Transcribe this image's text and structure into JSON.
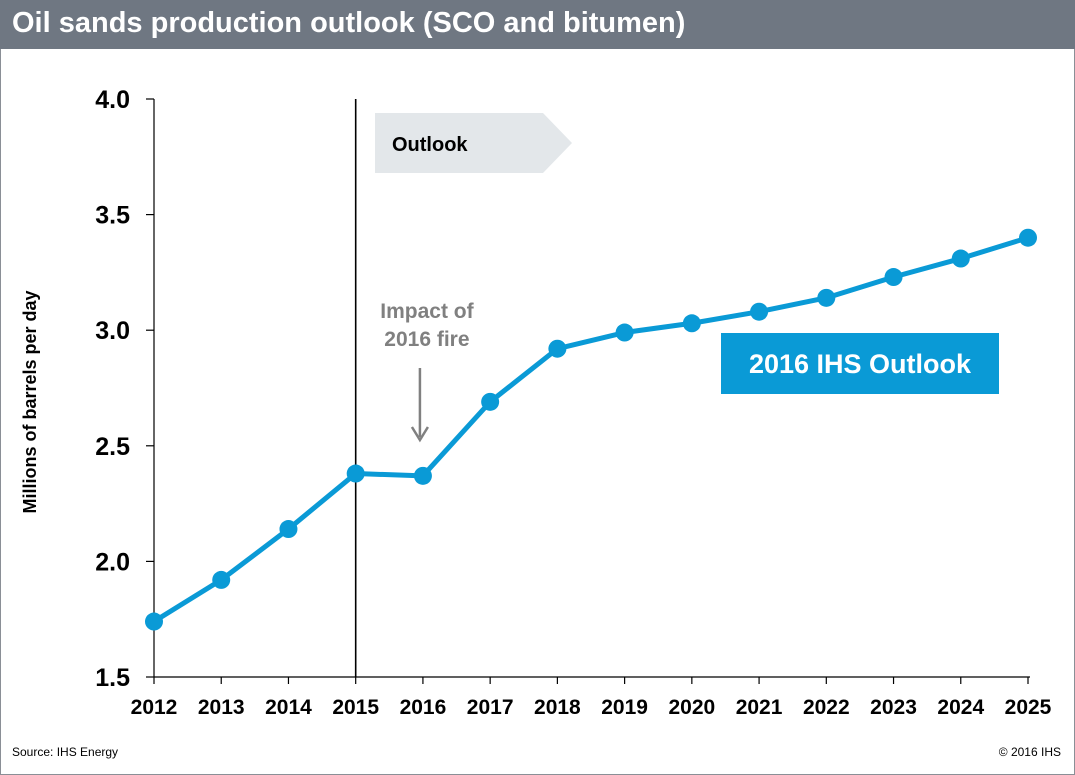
{
  "header": {
    "title": "Oil sands production outlook (SCO and bitumen)"
  },
  "footer": {
    "source": "Source: IHS Energy",
    "copyright": "© 2016 IHS"
  },
  "annotations": {
    "outlook_arrow_label": "Outlook",
    "impact_line1": "Impact of",
    "impact_line2": "2016 fire",
    "series_label": "2016 IHS Outlook"
  },
  "colors": {
    "series": "#0a9ad6",
    "title_bar": "#6f7782",
    "outlook_arrow": "#e3e7ea",
    "impact_text": "#808080"
  },
  "chart_data": {
    "type": "line",
    "title": "Oil sands production outlook (SCO and bitumen)",
    "xlabel": "",
    "ylabel": "Millions of barrels per day",
    "ylim": [
      1.5,
      4.0
    ],
    "yticks": [
      "1.5",
      "2.0",
      "2.5",
      "3.0",
      "3.5",
      "4.0"
    ],
    "x": [
      "2012",
      "2013",
      "2014",
      "2015",
      "2016",
      "2017",
      "2018",
      "2019",
      "2020",
      "2021",
      "2022",
      "2023",
      "2024",
      "2025"
    ],
    "series": [
      {
        "name": "2016 IHS Outlook",
        "values": [
          1.74,
          1.92,
          2.14,
          2.38,
          2.37,
          2.69,
          2.92,
          2.99,
          3.03,
          3.08,
          3.14,
          3.23,
          3.31,
          3.4
        ]
      }
    ],
    "divider_at": "2015",
    "impact_year": "2016",
    "grid": false,
    "legend": "none"
  }
}
